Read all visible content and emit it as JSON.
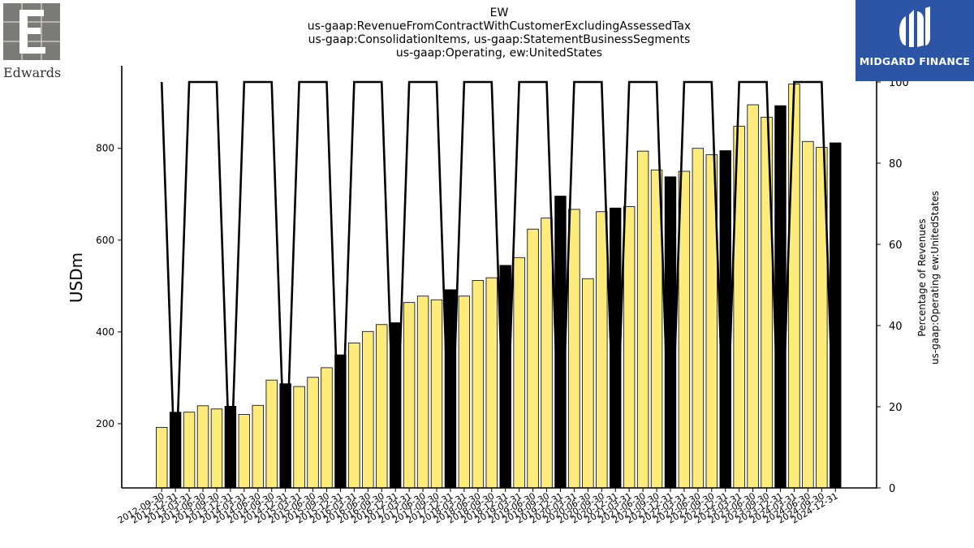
{
  "title_lines": [
    "EW",
    "us-gaap:RevenueFromContractWithCustomerExcludingAssessedTax",
    "us-gaap:ConsolidationItems, us-gaap:StatementBusinessSegments",
    "us-gaap:Operating, ew:UnitedStates"
  ],
  "logos": {
    "left": {
      "name": "Edwards"
    },
    "right": {
      "name": "MIDGARD FINANCE",
      "color": "#2c55a6"
    }
  },
  "colors": {
    "bar_default": "#fdeb7b",
    "bar_highlight": "#000000",
    "line": "#000000",
    "bar_edge": "#000000"
  },
  "chart_data": {
    "type": "bar",
    "ylabel": "USDm",
    "y2label_lines": [
      "Percentage of Revenues",
      "us-gaap:Operating ew:UnitedStates"
    ],
    "ylim": [
      60,
      980
    ],
    "y_ticks": [
      200,
      400,
      600,
      800
    ],
    "y2lim": [
      0,
      100
    ],
    "y2_ticks": [
      0,
      20,
      40,
      60,
      80,
      100
    ],
    "grid": false,
    "categories": [
      "2012-09-30",
      "2012-12-31",
      "2013-03-31",
      "2013-06-30",
      "2013-09-30",
      "2013-12-31",
      "2014-03-31",
      "2014-06-30",
      "2014-09-30",
      "2014-12-31",
      "2015-03-31",
      "2015-06-30",
      "2015-09-30",
      "2015-12-31",
      "2016-03-31",
      "2016-06-30",
      "2016-09-30",
      "2016-12-31",
      "2017-03-31",
      "2017-06-30",
      "2017-09-30",
      "2017-12-31",
      "2018-03-31",
      "2018-06-30",
      "2018-09-30",
      "2018-12-31",
      "2019-03-31",
      "2019-06-30",
      "2019-09-30",
      "2019-12-31",
      "2020-03-31",
      "2020-06-30",
      "2020-09-30",
      "2020-12-31",
      "2021-03-31",
      "2021-06-30",
      "2021-09-30",
      "2021-12-31",
      "2022-03-31",
      "2022-06-30",
      "2022-09-30",
      "2022-12-31",
      "2023-03-31",
      "2023-06-30",
      "2023-09-30",
      "2023-12-31",
      "2024-03-31",
      "2024-06-30",
      "2024-09-30",
      "2024-12-31"
    ],
    "series": [
      {
        "type": "bar",
        "values": [
          192,
          225,
          225,
          239,
          232,
          238,
          220,
          240,
          295,
          287,
          281,
          301,
          322,
          350,
          376,
          401,
          416,
          420,
          464,
          478,
          470,
          492,
          478,
          512,
          518,
          545,
          562,
          624,
          648,
          696,
          667,
          516,
          662,
          670,
          673,
          794,
          753,
          738,
          750,
          800,
          786,
          795,
          848,
          895,
          868,
          893,
          940,
          815,
          802,
          812
        ],
        "highlight": [
          false,
          true,
          false,
          false,
          false,
          true,
          false,
          false,
          false,
          true,
          false,
          false,
          false,
          true,
          false,
          false,
          false,
          true,
          false,
          false,
          false,
          true,
          false,
          false,
          false,
          true,
          false,
          false,
          false,
          true,
          false,
          false,
          false,
          true,
          false,
          false,
          false,
          true,
          false,
          false,
          false,
          true,
          false,
          false,
          false,
          true,
          false,
          false,
          false,
          true
        ]
      },
      {
        "type": "line",
        "axis": "right",
        "values": [
          100,
          0,
          100,
          100,
          100,
          0,
          100,
          100,
          100,
          0,
          100,
          100,
          100,
          0,
          100,
          100,
          100,
          0,
          100,
          100,
          100,
          0,
          100,
          100,
          100,
          0,
          100,
          100,
          100,
          0,
          100,
          100,
          100,
          0,
          100,
          100,
          100,
          0,
          100,
          100,
          100,
          0,
          100,
          100,
          100,
          0,
          100,
          100,
          100,
          0
        ]
      }
    ]
  }
}
